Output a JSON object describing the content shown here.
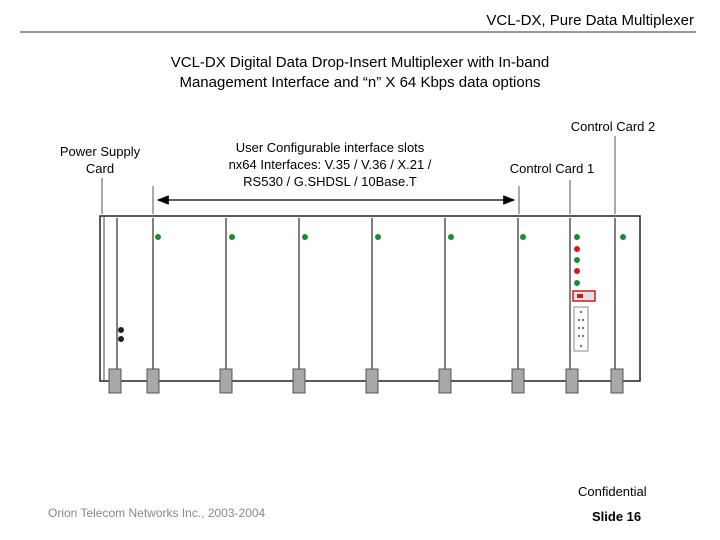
{
  "header": {
    "title": "VCL-DX, Pure Data Multiplexer"
  },
  "main": {
    "title_line1": "VCL-DX Digital Data Drop-Insert Multiplexer with In-band",
    "title_line2": "Management Interface and “n” X 64 Kbps data options"
  },
  "labels": {
    "power_supply_line1": "Power Supply",
    "power_supply_line2": "Card",
    "user_slots_line1": "User Configurable interface slots",
    "user_slots_line2": "nx64 Interfaces: V.35 / V.36 / X.21 /",
    "user_slots_line3": "RS530 / G.SHDSL / 10Base.T",
    "control_card_1": "Control Card 1",
    "control_card_2": "Control Card 2"
  },
  "footer": {
    "company": "Orion Telecom Networks Inc., 2003-2004",
    "confidential": "Confidential",
    "slide": "Slide 16"
  },
  "colors": {
    "led_green": "#1a8a3a",
    "led_red": "#d01a1a",
    "handle_gray": "#a8a8a8",
    "chassis_border": "#222222"
  }
}
